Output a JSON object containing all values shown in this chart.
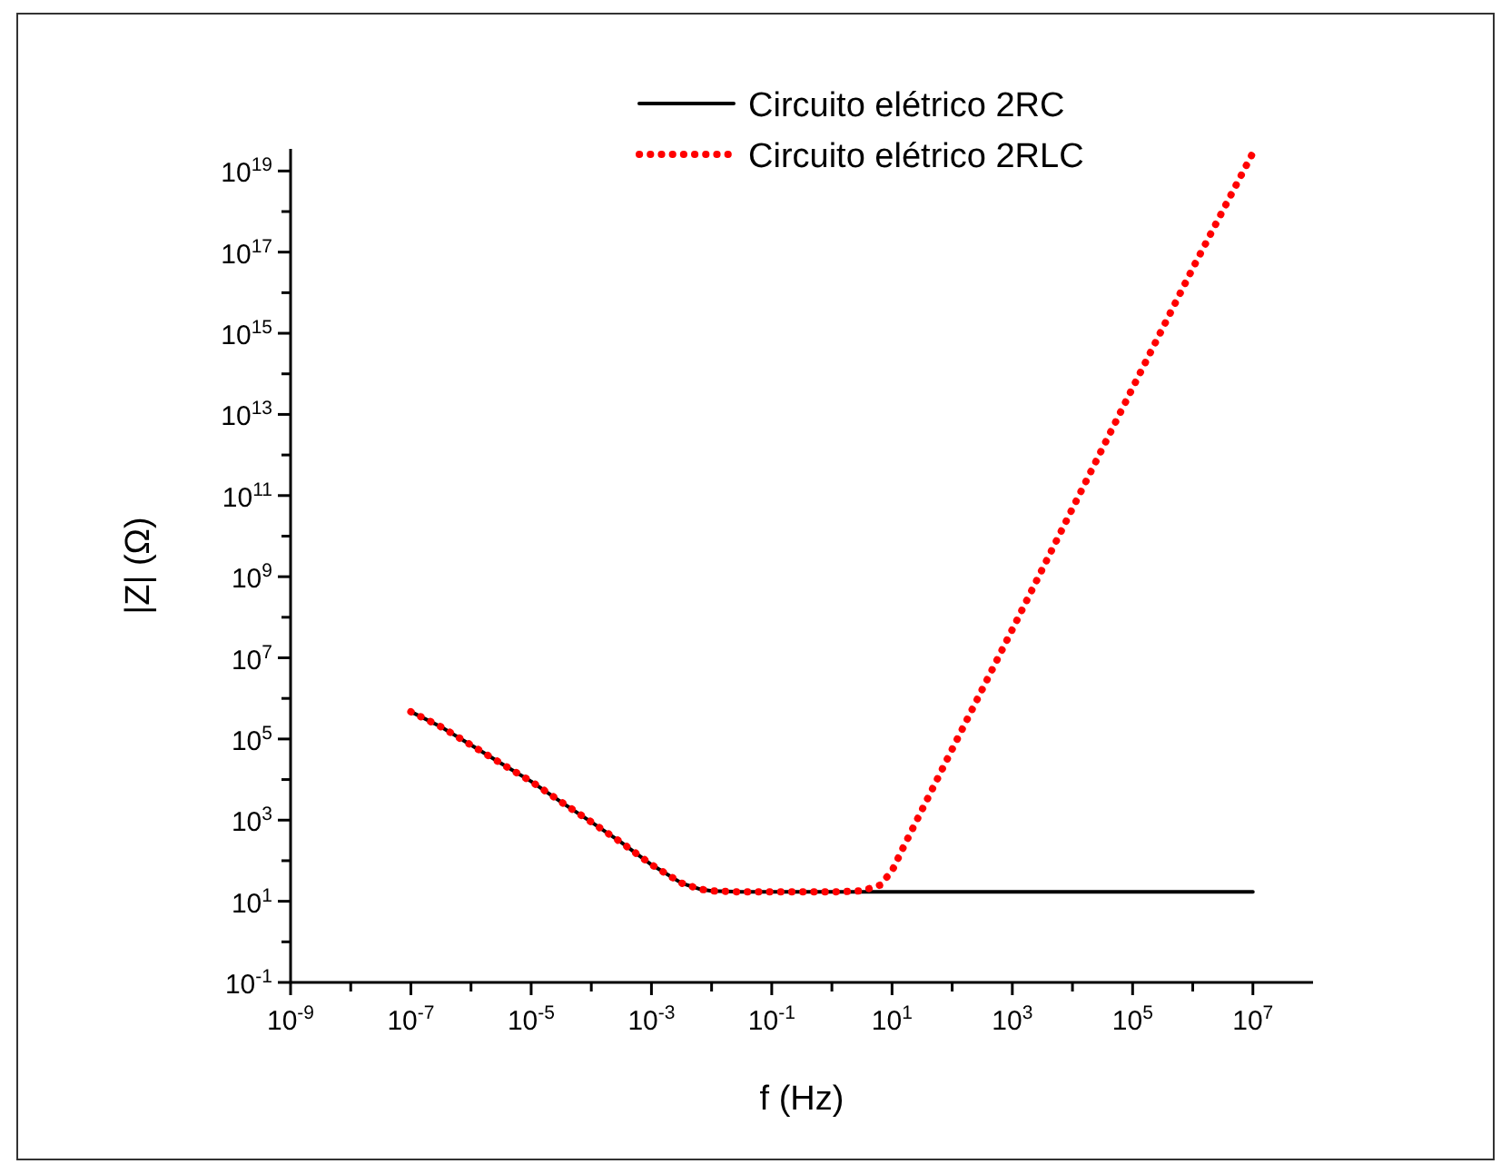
{
  "chart_data": {
    "type": "line",
    "xlabel": "f (Hz)",
    "ylabel": "|Z| (Ω)",
    "log": "xy",
    "legend": "top",
    "grid": false,
    "xlim": [
      1e-09,
      100000000.0
    ],
    "ylim": [
      0.1,
      3.5e+19
    ],
    "xticks": [
      {
        "value": 1e-09,
        "label": "10$^{-9}$"
      },
      {
        "value": 1e-08,
        "label": null
      },
      {
        "value": 1e-07,
        "label": "10$^{-7}$"
      },
      {
        "value": 1e-06,
        "label": null
      },
      {
        "value": 1e-05,
        "label": "10$^{-5}$"
      },
      {
        "value": 0.0001,
        "label": null
      },
      {
        "value": 0.001,
        "label": "10$^{-3}$"
      },
      {
        "value": 0.01,
        "label": null
      },
      {
        "value": 0.1,
        "label": "10$^{-1}$"
      },
      {
        "value": 1,
        "label": null
      },
      {
        "value": 10,
        "label": "10$^{1}$"
      },
      {
        "value": 100,
        "label": null
      },
      {
        "value": 1000,
        "label": "10$^{3}$"
      },
      {
        "value": 10000.0,
        "label": null
      },
      {
        "value": 100000.0,
        "label": "10$^{5}$"
      },
      {
        "value": 1000000.0,
        "label": null
      },
      {
        "value": 10000000.0,
        "label": "10$^{7}$"
      }
    ],
    "yticks": [
      {
        "value": 0.1,
        "label": "10$^{-1}$"
      },
      {
        "value": 1,
        "label": null
      },
      {
        "value": 10,
        "label": "10$^{1}$"
      },
      {
        "value": 100,
        "label": null
      },
      {
        "value": 1000,
        "label": "10$^{3}$"
      },
      {
        "value": 10000.0,
        "label": null
      },
      {
        "value": 100000.0,
        "label": "10$^{5}$"
      },
      {
        "value": 1000000.0,
        "label": null
      },
      {
        "value": 10000000.0,
        "label": "10$^{7}$"
      },
      {
        "value": 100000000.0,
        "label": null
      },
      {
        "value": 1000000000.0,
        "label": "10$^{9}$"
      },
      {
        "value": 10000000000.0,
        "label": null
      },
      {
        "value": 100000000000.0,
        "label": "10$^{11}$"
      },
      {
        "value": 1000000000000.0,
        "label": null
      },
      {
        "value": 10000000000000.0,
        "label": "10$^{13}$"
      },
      {
        "value": 100000000000000.0,
        "label": null
      },
      {
        "value": 1000000000000000.0,
        "label": "10$^{15}$"
      },
      {
        "value": 1e+16,
        "label": null
      },
      {
        "value": 1e+17,
        "label": "10$^{17}$"
      },
      {
        "value": 1e+18,
        "label": null
      },
      {
        "value": 1e+19,
        "label": "10$^{19}$"
      }
    ],
    "series": [
      {
        "name": "Circuito elétrico 2RC",
        "color": "#000000",
        "line_style": "solid",
        "x": [
          1e-07,
          3.16e-07,
          1e-06,
          3.16e-06,
          1e-05,
          3.16e-05,
          0.0001,
          0.000316,
          0.001,
          0.00316,
          0.0063,
          0.01,
          0.0316,
          0.1,
          1,
          3.16,
          10000000.0
        ],
        "values": [
          470000.0,
          200000.0,
          71000.0,
          25000.0,
          9000.0,
          2800.0,
          900,
          280,
          80,
          28,
          20,
          18,
          17,
          17,
          17,
          17,
          17
        ]
      },
      {
        "name": "Circuito elétrico 2RLC",
        "color": "#ff0000",
        "line_style": "dotted",
        "x": [
          1e-07,
          3.16e-07,
          1e-06,
          3.16e-06,
          1e-05,
          3.16e-05,
          0.0001,
          0.000316,
          0.001,
          0.00316,
          0.0063,
          0.01,
          0.0316,
          0.1,
          1,
          3.16,
          6.3,
          10,
          15.8,
          100,
          1000,
          10000.0,
          100000.0,
          1000000.0,
          10000000.0
        ],
        "values": [
          470000.0,
          200000.0,
          71000.0,
          25000.0,
          9000.0,
          2800.0,
          900,
          280,
          80,
          28,
          20,
          18,
          17,
          17,
          17,
          18,
          25,
          56,
          230,
          56000.0,
          50000000.0,
          48000000000.0,
          45000000000000.0,
          4e+16,
          2.8e+19
        ]
      }
    ]
  }
}
